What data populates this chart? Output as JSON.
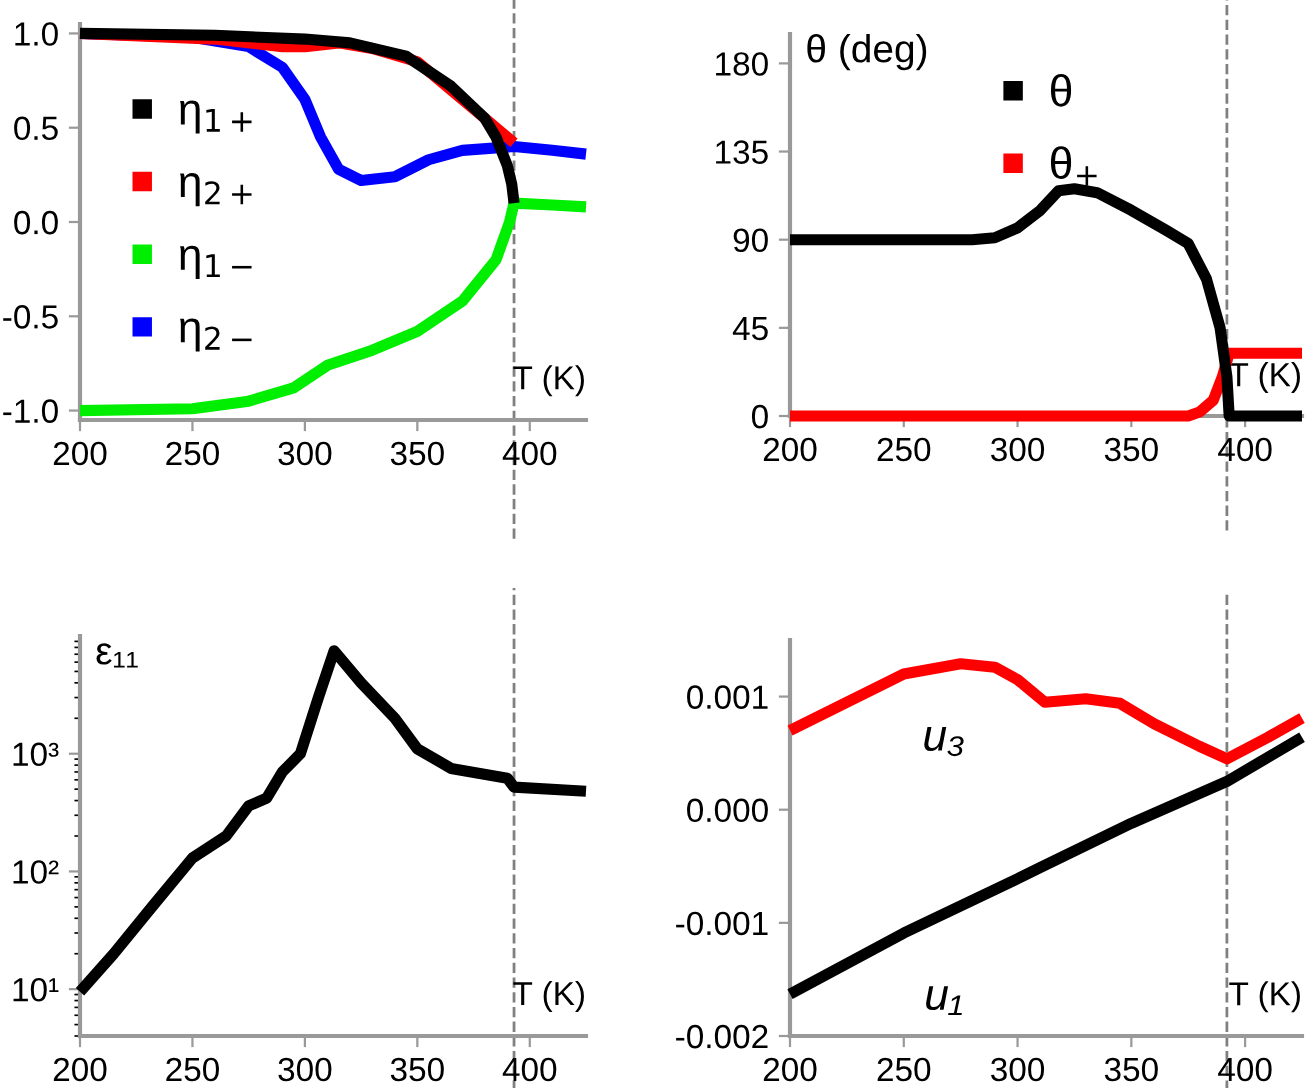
{
  "chart_data": [
    {
      "type": "line",
      "xlabel": "T (K)",
      "xlim": [
        200,
        425
      ],
      "xticks": [
        200,
        250,
        300,
        350,
        400
      ],
      "ylim": [
        -1.05,
        1.05
      ],
      "yticks": [
        {
          "value": -1.0,
          "label": "-1.0"
        },
        {
          "value": -0.5,
          "label": "-0.5"
        },
        {
          "value": 0.0,
          "label": "0.0"
        },
        {
          "value": 0.5,
          "label": "0.5"
        },
        {
          "value": 1.0,
          "label": "1.0"
        }
      ],
      "legend": "center left",
      "grid": false,
      "ref_lines": [
        {
          "axis": "x",
          "value": 393,
          "color": "#808080",
          "line_style": "dashed"
        }
      ],
      "series": [
        {
          "name": "η$_{1+}$",
          "color": "#000000",
          "x": [
            200,
            260,
            300,
            320,
            345,
            365,
            380,
            385,
            390,
            392,
            393
          ],
          "values": [
            1.0,
            0.99,
            0.97,
            0.95,
            0.88,
            0.72,
            0.55,
            0.45,
            0.3,
            0.2,
            0.1
          ]
        },
        {
          "name": "η$_{2+}$",
          "color": "#ff0000",
          "x": [
            200,
            260,
            290,
            300,
            315,
            330,
            350,
            365,
            380,
            393
          ],
          "values": [
            1.0,
            0.97,
            0.93,
            0.93,
            0.95,
            0.92,
            0.85,
            0.7,
            0.55,
            0.42
          ]
        },
        {
          "name": "η$_{1−}$",
          "color": "#00ee00",
          "x": [
            200,
            250,
            275,
            295,
            310,
            330,
            350,
            370,
            385,
            391,
            393,
            410,
            425
          ],
          "values": [
            -1.0,
            -0.99,
            -0.95,
            -0.88,
            -0.76,
            -0.68,
            -0.58,
            -0.42,
            -0.2,
            0.0,
            0.1,
            0.09,
            0.08
          ]
        },
        {
          "name": "η$_{2−}$",
          "color": "#0000ff",
          "x": [
            200,
            250,
            275,
            290,
            300,
            307,
            315,
            325,
            340,
            355,
            370,
            393,
            410,
            425
          ],
          "values": [
            1.0,
            0.98,
            0.93,
            0.82,
            0.65,
            0.45,
            0.28,
            0.22,
            0.24,
            0.33,
            0.38,
            0.4,
            0.38,
            0.36
          ]
        }
      ]
    },
    {
      "type": "line",
      "xlabel": "T (K)",
      "ylabel": "θ (deg)",
      "xlim": [
        200,
        425
      ],
      "xticks": [
        200,
        250,
        300,
        350,
        400
      ],
      "ylim": [
        0,
        195
      ],
      "yticks": [
        0,
        45,
        90,
        135,
        180
      ],
      "legend": "upper center",
      "grid": false,
      "ref_lines": [
        {
          "axis": "x",
          "value": 392,
          "color": "#808080",
          "line_style": "dashed"
        }
      ],
      "series": [
        {
          "name": "θ",
          "color": "#000000",
          "x": [
            200,
            280,
            290,
            300,
            310,
            318,
            325,
            335,
            350,
            365,
            375,
            383,
            389,
            392,
            393,
            425
          ],
          "values": [
            90,
            90,
            91,
            96,
            105,
            115,
            116,
            114,
            105,
            95,
            88,
            70,
            45,
            20,
            0,
            0
          ]
        },
        {
          "name": "θ$_{+}$",
          "color": "#ff0000",
          "x": [
            200,
            375,
            380,
            386,
            390,
            393,
            425
          ],
          "values": [
            0,
            0,
            2,
            8,
            20,
            32,
            32
          ]
        }
      ]
    },
    {
      "type": "line",
      "xlabel": "T (K)",
      "ylabel": "ε₁₁",
      "log": "y",
      "xlim": [
        200,
        425
      ],
      "xticks": [
        200,
        250,
        300,
        350,
        400
      ],
      "ylim": [
        4,
        10000
      ],
      "yticks": [
        {
          "value": 10,
          "label": "10¹"
        },
        {
          "value": 100,
          "label": "10²"
        },
        {
          "value": 1000,
          "label": "10³"
        }
      ],
      "legend": false,
      "grid": false,
      "ref_lines": [
        {
          "axis": "x",
          "value": 393,
          "color": "#808080",
          "line_style": "dashed"
        }
      ],
      "series": [
        {
          "color": "#000000",
          "x": [
            200,
            215,
            232,
            250,
            265,
            275,
            283,
            290,
            298,
            306,
            313,
            325,
            340,
            350,
            365,
            390,
            393,
            425
          ],
          "values": [
            9.5,
            20,
            50,
            130,
            200,
            360,
            420,
            700,
            1000,
            3000,
            7500,
            4000,
            2000,
            1100,
            750,
            620,
            520,
            480
          ]
        }
      ]
    },
    {
      "type": "line",
      "xlabel": "T (K)",
      "xlim": [
        200,
        425
      ],
      "xticks": [
        200,
        250,
        300,
        350,
        400
      ],
      "ylim": [
        -0.002,
        0.0015
      ],
      "yticks": [
        {
          "value": -0.002,
          "label": "-0.002"
        },
        {
          "value": -0.001,
          "label": "-0.001"
        },
        {
          "value": 0.0,
          "label": "0.000"
        },
        {
          "value": 0.001,
          "label": "0.001"
        }
      ],
      "legend": false,
      "grid": false,
      "ref_lines": [
        {
          "axis": "x",
          "value": 392,
          "color": "#808080",
          "line_style": "dashed"
        }
      ],
      "series": [
        {
          "name": "u₃",
          "color": "#ff0000",
          "x": [
            200,
            250,
            275,
            290,
            300,
            312,
            330,
            345,
            360,
            380,
            392,
            410,
            425
          ],
          "values": [
            0.0007,
            0.0012,
            0.00129,
            0.00126,
            0.00115,
            0.00095,
            0.00098,
            0.00094,
            0.00076,
            0.00056,
            0.00045,
            0.00064,
            0.00081
          ]
        },
        {
          "name": "u₁",
          "color": "#000000",
          "x": [
            200,
            250,
            300,
            310,
            350,
            392,
            425
          ],
          "values": [
            -0.00163,
            -0.00109,
            -0.00061,
            -0.00051,
            -0.00012,
            0.00025,
            0.00064
          ]
        }
      ]
    }
  ]
}
